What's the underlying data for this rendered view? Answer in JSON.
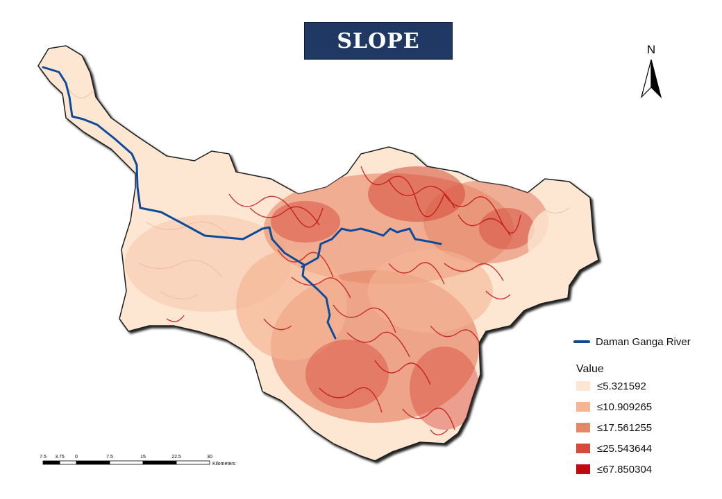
{
  "title": "SLOPE",
  "north_arrow": {
    "label": "N",
    "icon": "north-arrow-icon"
  },
  "legend": {
    "river_label": "Daman Ganga River",
    "river_color": "#0e4a9c",
    "value_title": "Value",
    "classes": [
      {
        "label": "≤5.321592",
        "color": "#fde6d2"
      },
      {
        "label": "≤10.909265",
        "color": "#f3b594"
      },
      {
        "label": "≤17.561255",
        "color": "#e5876a"
      },
      {
        "label": "≤25.543644",
        "color": "#d64a3b"
      },
      {
        "label": "≤67.850304",
        "color": "#c00a0f"
      }
    ]
  },
  "scalebar": {
    "ticks": [
      "7.5",
      "3.75",
      "0",
      "7.5",
      "15",
      "22.5",
      "30"
    ],
    "unit": "Kilometers"
  }
}
